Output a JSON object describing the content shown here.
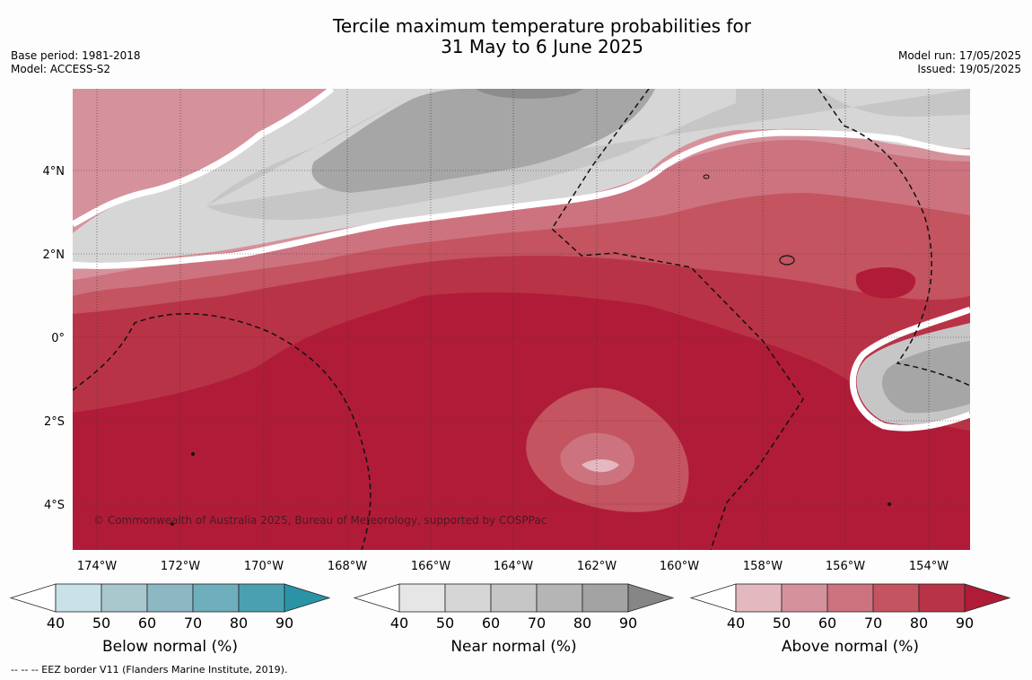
{
  "header": {
    "title_line1": "Tercile maximum temperature probabilities for",
    "title_line2": "31 May to 6 June 2025",
    "base_period": "Base period: 1981-2018",
    "model": "Model: ACCESS-S2",
    "model_run": "Model run: 17/05/2025",
    "issued": "Issued: 19/05/2025"
  },
  "map": {
    "copyright": "© Commonwealth of Australia 2025, Bureau of Meteorology, supported by COSPPac",
    "lon_labels": [
      "174°W",
      "172°W",
      "170°W",
      "168°W",
      "166°W",
      "164°W",
      "162°W",
      "160°W",
      "158°W",
      "156°W",
      "154°W"
    ],
    "lat_labels": [
      "4°N",
      "2°N",
      "0°",
      "2°S",
      "4°S"
    ]
  },
  "legends": [
    {
      "label": "Below normal (%)",
      "ticks": [
        "40",
        "50",
        "60",
        "70",
        "80",
        "90"
      ],
      "colors": [
        "#ffffff",
        "#c9e2e8",
        "#a9c8cd",
        "#8cb8c4",
        "#6eaebd",
        "#4aa0b0",
        "#2b93a6"
      ]
    },
    {
      "label": "Near normal (%)",
      "ticks": [
        "40",
        "50",
        "60",
        "70",
        "80",
        "90"
      ],
      "colors": [
        "#ffffff",
        "#e6e6e6",
        "#d6d6d6",
        "#c6c6c6",
        "#b5b5b5",
        "#a3a3a3",
        "#868686"
      ]
    },
    {
      "label": "Above normal (%)",
      "ticks": [
        "40",
        "50",
        "60",
        "70",
        "80",
        "90"
      ],
      "colors": [
        "#ffffff",
        "#e3b8be",
        "#d6929c",
        "#cc737f",
        "#c4545f",
        "#b93347",
        "#b01c38"
      ]
    }
  ],
  "footer": {
    "eez_note": "--  --  -- EEZ border V11 (Flanders Marine Institute, 2019)."
  },
  "palette": {
    "above_40": "#e3b8be",
    "above_50": "#d6929c",
    "above_60": "#cc737f",
    "above_70": "#c4545f",
    "above_80": "#b93347",
    "above_90": "#b01c38",
    "near_50": "#e1e1e1",
    "near_60": "#d2d2d2",
    "near_70": "#c6c6c6",
    "near_80": "#a6a6a6",
    "near_90": "#8c8c8c"
  }
}
